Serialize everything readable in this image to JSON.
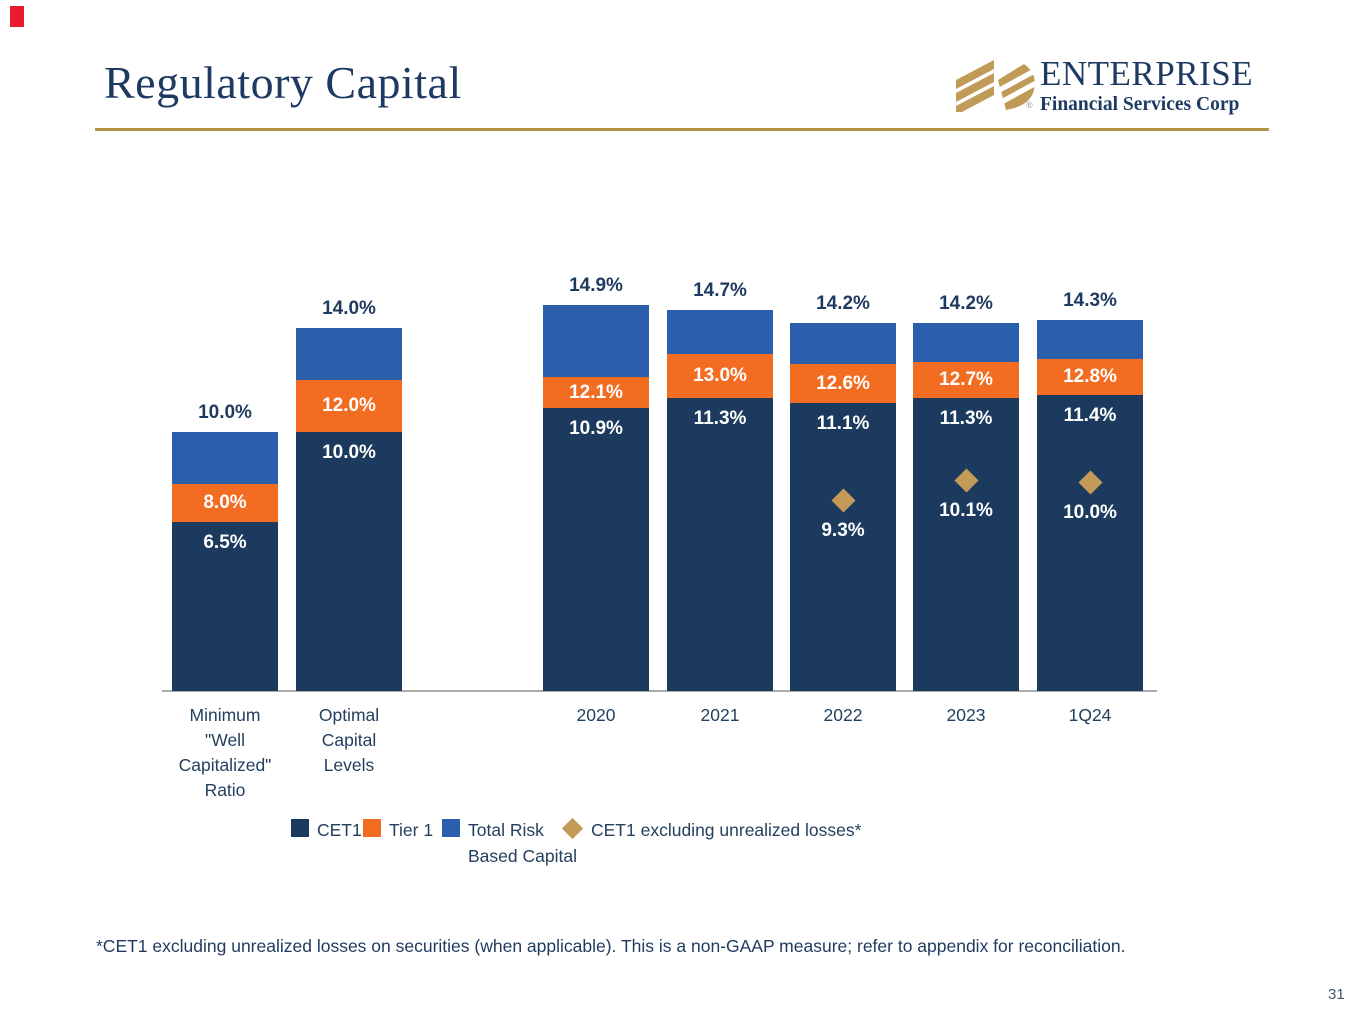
{
  "header": {
    "title": "Regulatory Capital",
    "logo": {
      "brand": "ENTERPRISE",
      "subtitle": "Financial Services Corp",
      "registered_mark": "®"
    }
  },
  "colors": {
    "navy": "#1b3a5e",
    "orange": "#f26c22",
    "blue": "#2b5fab",
    "gold_diamond": "#c49a58",
    "gold_rule": "#b49245",
    "title_navy": "#1e3a63",
    "axis_gray": "#ababab"
  },
  "chart_data": {
    "type": "bar",
    "stacked": true,
    "unit": "%",
    "ylim": [
      0,
      16
    ],
    "grid": false,
    "values_are_cumulative": true,
    "legend_position": "bottom",
    "series_labels": [
      "CET1",
      "Tier 1",
      "Total Risk Based Capital"
    ],
    "marker_series_label": "CET1 excluding unrealized losses*",
    "categories": [
      "Minimum \"Well Capitalized\" Ratio",
      "Optimal Capital Levels",
      "2020",
      "2021",
      "2022",
      "2023",
      "1Q24"
    ],
    "bars": [
      {
        "category_lines": [
          "Minimum",
          "\"Well",
          "Capitalized\"",
          "Ratio"
        ],
        "cet1": 6.5,
        "tier1": 8.0,
        "total": 10.0,
        "cet1_label": "6.5%",
        "tier1_label": "8.0%",
        "total_label": "10.0%",
        "marker": null,
        "marker_label": null
      },
      {
        "category_lines": [
          "Optimal",
          "Capital",
          "Levels"
        ],
        "cet1": 10.0,
        "tier1": 12.0,
        "total": 14.0,
        "cet1_label": "10.0%",
        "tier1_label": "12.0%",
        "total_label": "14.0%",
        "marker": null,
        "marker_label": null
      },
      {
        "category_lines": [
          "2020"
        ],
        "cet1": 10.9,
        "tier1": 12.1,
        "total": 14.9,
        "cet1_label": "10.9%",
        "tier1_label": "12.1%",
        "total_label": "14.9%",
        "marker": null,
        "marker_label": null
      },
      {
        "category_lines": [
          "2021"
        ],
        "cet1": 11.3,
        "tier1": 13.0,
        "total": 14.7,
        "cet1_label": "11.3%",
        "tier1_label": "13.0%",
        "total_label": "14.7%",
        "marker": null,
        "marker_label": null
      },
      {
        "category_lines": [
          "2022"
        ],
        "cet1": 11.1,
        "tier1": 12.6,
        "total": 14.2,
        "cet1_label": "11.1%",
        "tier1_label": "12.6%",
        "total_label": "14.2%",
        "marker": 9.3,
        "marker_label": "9.3%"
      },
      {
        "category_lines": [
          "2023"
        ],
        "cet1": 11.3,
        "tier1": 12.7,
        "total": 14.2,
        "cet1_label": "11.3%",
        "tier1_label": "12.7%",
        "total_label": "14.2%",
        "marker": 10.1,
        "marker_label": "10.1%"
      },
      {
        "category_lines": [
          "1Q24"
        ],
        "cet1": 11.4,
        "tier1": 12.8,
        "total": 14.3,
        "cet1_label": "11.4%",
        "tier1_label": "12.8%",
        "total_label": "14.3%",
        "marker": 10.0,
        "marker_label": "10.0%"
      }
    ]
  },
  "legend": {
    "items": [
      {
        "swatch": "square",
        "color": "#1b3a5e",
        "lines": [
          "CET1"
        ]
      },
      {
        "swatch": "square",
        "color": "#f26c22",
        "lines": [
          "Tier 1"
        ]
      },
      {
        "swatch": "square",
        "color": "#2b5fab",
        "lines": [
          "Total Risk",
          "Based Capital"
        ]
      },
      {
        "swatch": "diamond",
        "color": "#c49a58",
        "lines": [
          "CET1 excluding unrealized losses*"
        ]
      }
    ]
  },
  "footnote": "*CET1 excluding unrealized losses on securities (when applicable). This is a non-GAAP measure; refer to appendix for reconciliation.",
  "page_number": "31"
}
